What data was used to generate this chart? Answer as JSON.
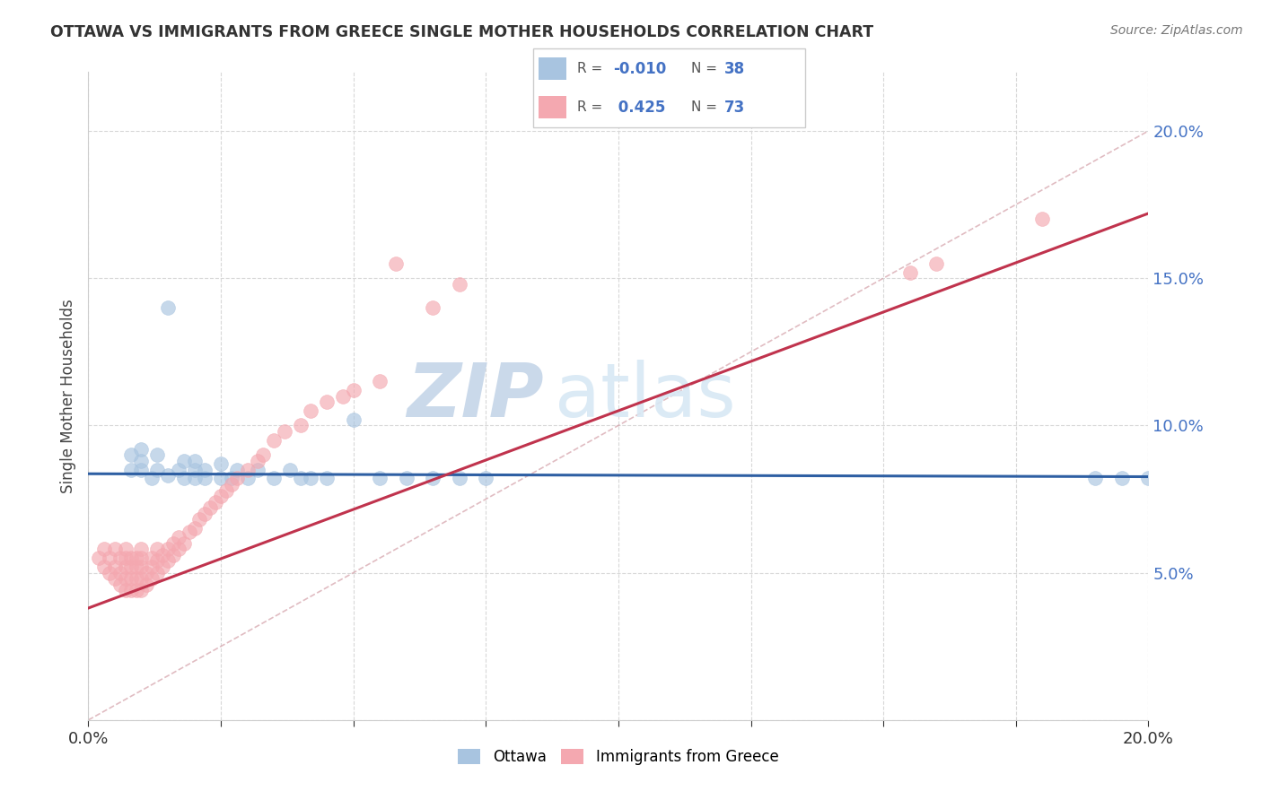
{
  "title": "OTTAWA VS IMMIGRANTS FROM GREECE SINGLE MOTHER HOUSEHOLDS CORRELATION CHART",
  "source_text": "Source: ZipAtlas.com",
  "ylabel": "Single Mother Households",
  "xlim": [
    0.0,
    0.2
  ],
  "ylim": [
    0.0,
    0.22
  ],
  "blue_color": "#a8c4e0",
  "pink_color": "#f4a8b0",
  "trend_blue": "#2e5fa3",
  "trend_pink": "#c0334d",
  "diag_color": "#ccaaaa",
  "watermark_zip": "ZIP",
  "watermark_atlas": "atlas",
  "watermark_color": "#d0dff0",
  "ottawa_x": [
    0.008,
    0.008,
    0.01,
    0.01,
    0.01,
    0.012,
    0.013,
    0.013,
    0.015,
    0.015,
    0.017,
    0.018,
    0.018,
    0.02,
    0.02,
    0.02,
    0.022,
    0.022,
    0.025,
    0.025,
    0.027,
    0.028,
    0.03,
    0.032,
    0.035,
    0.038,
    0.04,
    0.042,
    0.045,
    0.05,
    0.055,
    0.06,
    0.065,
    0.07,
    0.075,
    0.19,
    0.195,
    0.2
  ],
  "ottawa_y": [
    0.085,
    0.09,
    0.085,
    0.088,
    0.092,
    0.082,
    0.085,
    0.09,
    0.083,
    0.14,
    0.085,
    0.082,
    0.088,
    0.082,
    0.085,
    0.088,
    0.082,
    0.085,
    0.082,
    0.087,
    0.082,
    0.085,
    0.082,
    0.085,
    0.082,
    0.085,
    0.082,
    0.082,
    0.082,
    0.102,
    0.082,
    0.082,
    0.082,
    0.082,
    0.082,
    0.082,
    0.082,
    0.082
  ],
  "greece_x": [
    0.002,
    0.003,
    0.003,
    0.004,
    0.004,
    0.005,
    0.005,
    0.005,
    0.006,
    0.006,
    0.006,
    0.007,
    0.007,
    0.007,
    0.007,
    0.007,
    0.008,
    0.008,
    0.008,
    0.008,
    0.009,
    0.009,
    0.009,
    0.009,
    0.01,
    0.01,
    0.01,
    0.01,
    0.01,
    0.011,
    0.011,
    0.012,
    0.012,
    0.012,
    0.013,
    0.013,
    0.013,
    0.014,
    0.014,
    0.015,
    0.015,
    0.016,
    0.016,
    0.017,
    0.017,
    0.018,
    0.019,
    0.02,
    0.021,
    0.022,
    0.023,
    0.024,
    0.025,
    0.026,
    0.027,
    0.028,
    0.03,
    0.032,
    0.033,
    0.035,
    0.037,
    0.04,
    0.042,
    0.045,
    0.048,
    0.05,
    0.055,
    0.058,
    0.065,
    0.07,
    0.155,
    0.16,
    0.18
  ],
  "greece_y": [
    0.055,
    0.052,
    0.058,
    0.05,
    0.055,
    0.048,
    0.052,
    0.058,
    0.046,
    0.05,
    0.055,
    0.044,
    0.048,
    0.052,
    0.055,
    0.058,
    0.044,
    0.048,
    0.052,
    0.055,
    0.044,
    0.048,
    0.052,
    0.055,
    0.044,
    0.048,
    0.052,
    0.055,
    0.058,
    0.046,
    0.05,
    0.048,
    0.052,
    0.055,
    0.05,
    0.054,
    0.058,
    0.052,
    0.056,
    0.054,
    0.058,
    0.056,
    0.06,
    0.058,
    0.062,
    0.06,
    0.064,
    0.065,
    0.068,
    0.07,
    0.072,
    0.074,
    0.076,
    0.078,
    0.08,
    0.082,
    0.085,
    0.088,
    0.09,
    0.095,
    0.098,
    0.1,
    0.105,
    0.108,
    0.11,
    0.112,
    0.115,
    0.155,
    0.14,
    0.148,
    0.152,
    0.155,
    0.17
  ]
}
